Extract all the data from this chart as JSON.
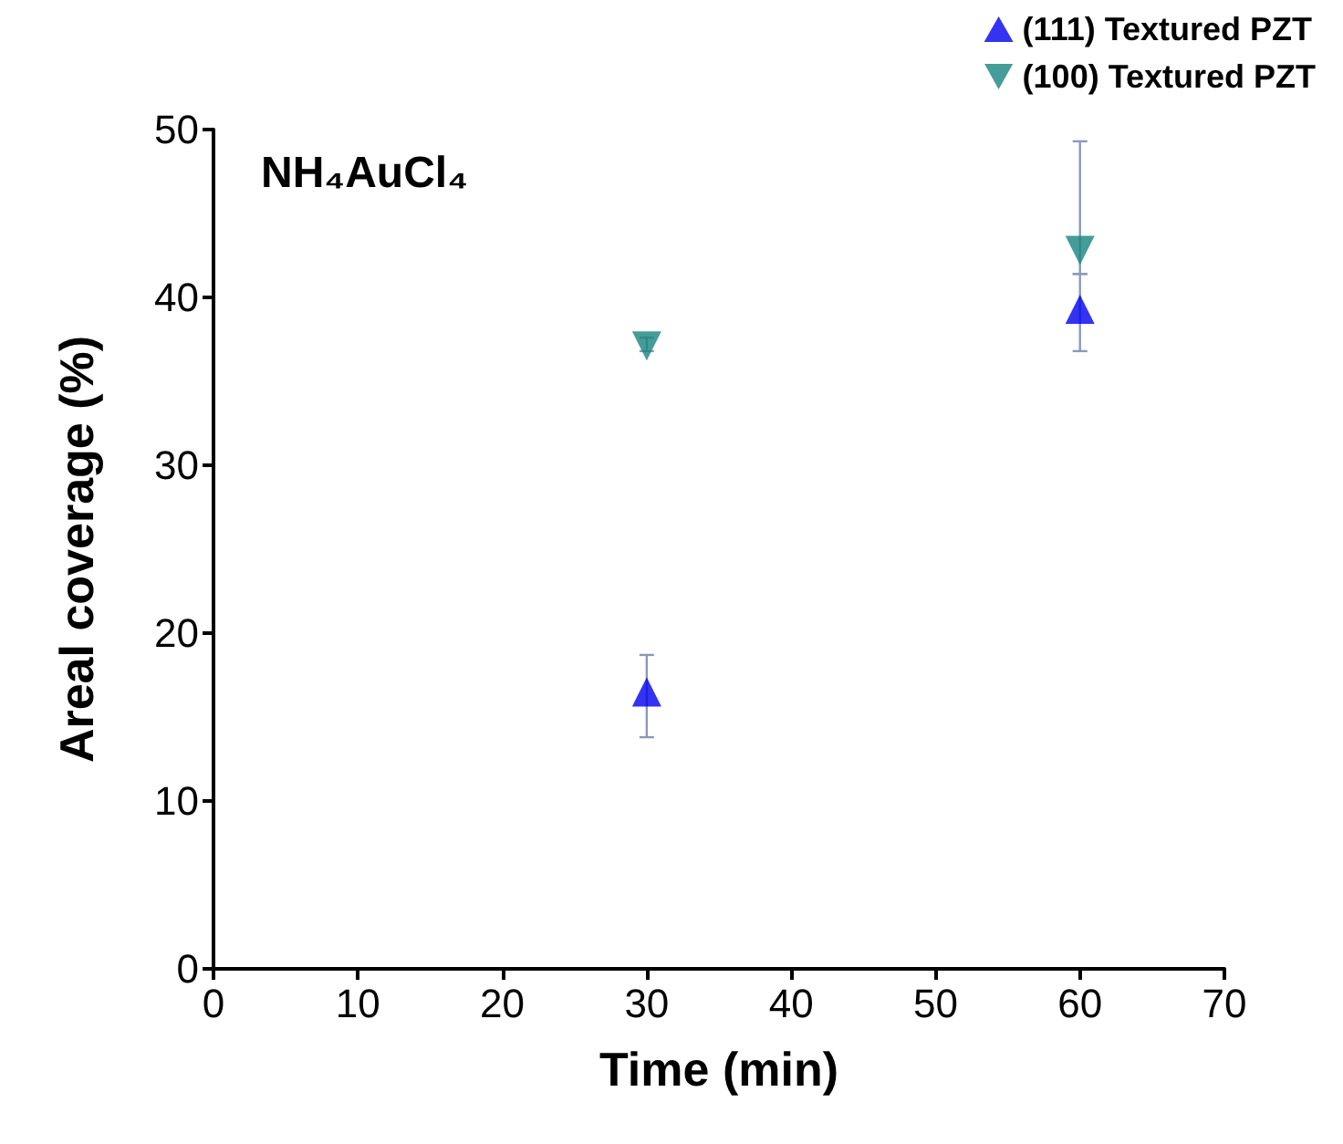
{
  "chart_data": {
    "type": "scatter",
    "xlabel": "Time (min)",
    "ylabel": "Areal coverage (%)",
    "annotations": [
      "NH₄AuCl₄"
    ],
    "xlim": [
      0,
      70
    ],
    "xticks": [
      0,
      10,
      20,
      30,
      40,
      50,
      60,
      70
    ],
    "ylim": [
      0,
      50
    ],
    "yticks": [
      0,
      10,
      20,
      30,
      40,
      50
    ],
    "grid": false,
    "legend": "top right",
    "x": [
      30,
      60
    ],
    "series": [
      {
        "name": "(111) Textured PZT",
        "color": "#0000ee",
        "marker": "triangle",
        "values": [
          16.5,
          39.3
        ],
        "errors": [
          [
            13.8,
            18.7
          ],
          [
            36.8,
            41.4
          ]
        ]
      },
      {
        "name": "(100) Textured PZT",
        "color": "#178580",
        "marker": "triangle-down",
        "values": [
          37.1,
          42.8
        ],
        "errors": [
          [
            36.8,
            37.6
          ],
          [
            41.4,
            49.3
          ]
        ]
      }
    ]
  }
}
